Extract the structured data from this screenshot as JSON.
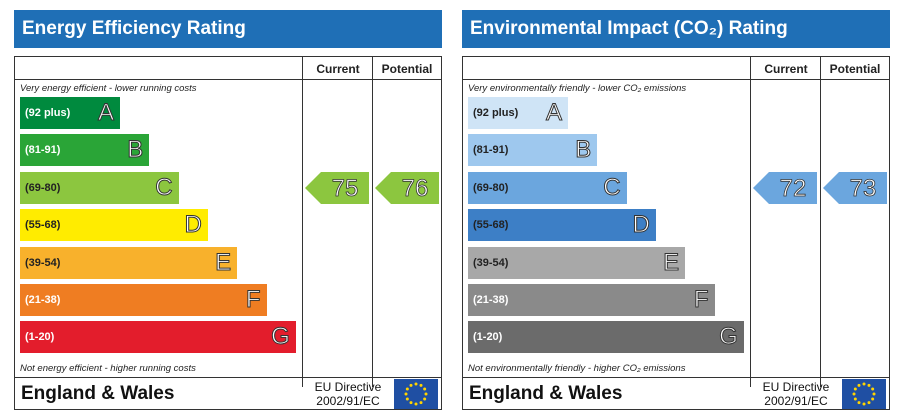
{
  "charts": [
    {
      "title": "Energy Efficiency Rating",
      "col_current": "Current",
      "col_potential": "Potential",
      "top_note": "Very energy efficient - lower running costs",
      "bottom_note": "Not energy efficient - higher running costs",
      "footer_region": "England & Wales",
      "directive_line1": "EU Directive",
      "directive_line2": "2002/91/EC",
      "bands": [
        {
          "range": "(92 plus)",
          "letter": "A",
          "color": "#008a3e",
          "text_color": "#ffffff"
        },
        {
          "range": "(81-91)",
          "letter": "B",
          "color": "#2aa537",
          "text_color": "#ffffff"
        },
        {
          "range": "(69-80)",
          "letter": "C",
          "color": "#8cc63f",
          "text_color": "#222222"
        },
        {
          "range": "(55-68)",
          "letter": "D",
          "color": "#ffec00",
          "text_color": "#222222"
        },
        {
          "range": "(39-54)",
          "letter": "E",
          "color": "#f8b12c",
          "text_color": "#222222"
        },
        {
          "range": "(21-38)",
          "letter": "F",
          "color": "#ef7d22",
          "text_color": "#ffffff"
        },
        {
          "range": "(1-20)",
          "letter": "G",
          "color": "#e31d2c",
          "text_color": "#ffffff"
        }
      ],
      "current": {
        "value": "75",
        "band": "C",
        "color": "#8cc63f"
      },
      "potential": {
        "value": "76",
        "band": "C",
        "color": "#8cc63f"
      },
      "eu_flag": "eu-flag-icon"
    },
    {
      "title": "Environmental Impact (CO₂) Rating",
      "col_current": "Current",
      "col_potential": "Potential",
      "top_note": "Very environmentally friendly - lower CO₂ emissions",
      "bottom_note": "Not environmentally friendly - higher CO₂ emissions",
      "footer_region": "England & Wales",
      "directive_line1": "EU Directive",
      "directive_line2": "2002/91/EC",
      "bands": [
        {
          "range": "(92 plus)",
          "letter": "A",
          "color": "#cfe4f6",
          "text_color": "#222222"
        },
        {
          "range": "(81-91)",
          "letter": "B",
          "color": "#9ec8ee",
          "text_color": "#222222"
        },
        {
          "range": "(69-80)",
          "letter": "C",
          "color": "#6ba6de",
          "text_color": "#222222"
        },
        {
          "range": "(55-68)",
          "letter": "D",
          "color": "#3d7fc6",
          "text_color": "#222222"
        },
        {
          "range": "(39-54)",
          "letter": "E",
          "color": "#a8a8a8",
          "text_color": "#222222"
        },
        {
          "range": "(21-38)",
          "letter": "F",
          "color": "#8a8a8a",
          "text_color": "#ffffff"
        },
        {
          "range": "(1-20)",
          "letter": "G",
          "color": "#6b6b6b",
          "text_color": "#ffffff"
        }
      ],
      "current": {
        "value": "72",
        "band": "C",
        "color": "#6ba6de"
      },
      "potential": {
        "value": "73",
        "band": "C",
        "color": "#6ba6de"
      },
      "eu_flag": "eu-flag-icon"
    }
  ]
}
